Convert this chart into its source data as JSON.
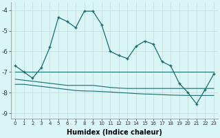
{
  "xlabel": "Humidex (Indice chaleur)",
  "x": [
    0,
    1,
    2,
    3,
    4,
    5,
    6,
    7,
    8,
    9,
    10,
    11,
    12,
    13,
    14,
    15,
    16,
    17,
    18,
    19,
    20,
    21,
    22,
    23
  ],
  "line1_y": [
    -6.7,
    -7.0,
    -7.3,
    -6.8,
    -5.8,
    -4.35,
    -4.55,
    -4.85,
    -4.05,
    -4.05,
    -4.7,
    -6.0,
    -6.2,
    -6.35,
    -5.75,
    -5.5,
    -5.65,
    -6.5,
    -6.7,
    -7.55,
    -8.0,
    -8.55,
    -7.85,
    -7.1
  ],
  "line2_y": [
    -7.0,
    -7.0,
    -7.0,
    -7.0,
    -7.0,
    -7.0,
    -7.0,
    -7.0,
    -7.0,
    -7.0,
    -7.0,
    -7.0,
    -7.0,
    -7.0,
    -7.0,
    -7.0,
    -7.0,
    -7.0,
    -7.0,
    -7.0,
    -7.0,
    -7.0,
    -7.0,
    -7.0
  ],
  "line3_y": [
    -7.35,
    -7.4,
    -7.45,
    -7.5,
    -7.55,
    -7.6,
    -7.65,
    -7.65,
    -7.65,
    -7.65,
    -7.7,
    -7.75,
    -7.78,
    -7.8,
    -7.8,
    -7.8,
    -7.8,
    -7.8,
    -7.8,
    -7.8,
    -7.8,
    -7.8,
    -7.8,
    -7.8
  ],
  "line4_y": [
    -7.6,
    -7.6,
    -7.65,
    -7.7,
    -7.75,
    -7.8,
    -7.85,
    -7.9,
    -7.92,
    -7.93,
    -7.95,
    -7.97,
    -8.0,
    -8.02,
    -8.05,
    -8.07,
    -8.08,
    -8.1,
    -8.12,
    -8.13,
    -8.14,
    -8.14,
    -8.14,
    -8.14
  ],
  "line_color": "#1a6b6b",
  "bg_color": "#d9f5f5",
  "grid_color": "#c8dede",
  "ylim": [
    -9.25,
    -3.6
  ],
  "xlim": [
    -0.5,
    23.5
  ],
  "yticks": [
    -9,
    -8,
    -7,
    -6,
    -5,
    -4
  ],
  "xtick_labels": [
    "0",
    "1",
    "2",
    "3",
    "4",
    "5",
    "6",
    "7",
    "8",
    "9",
    "10",
    "11",
    "12",
    "13",
    "14",
    "15",
    "16",
    "17",
    "18",
    "19",
    "20",
    "21",
    "22",
    "23"
  ],
  "marker": "+"
}
